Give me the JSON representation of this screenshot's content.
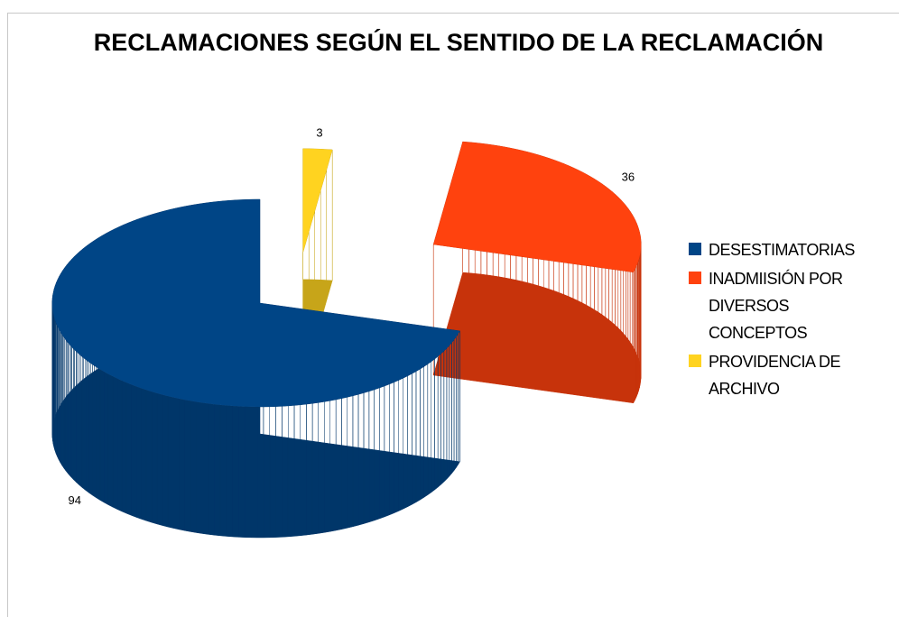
{
  "chart_data": {
    "type": "pie3d",
    "title": "RECLAMACIONES SEGÚN EL SENTIDO DE LA RECLAMACIÓN",
    "categories": [
      "DESESTIMATORIAS",
      "INADMIISIÓN POR DIVERSOS CONCEPTOS",
      "PROVIDENCIA DE ARCHIVO"
    ],
    "values": [
      94,
      36,
      3
    ],
    "colors": [
      "#004586",
      "#ff420e",
      "#ffd320"
    ],
    "legend": "right"
  }
}
